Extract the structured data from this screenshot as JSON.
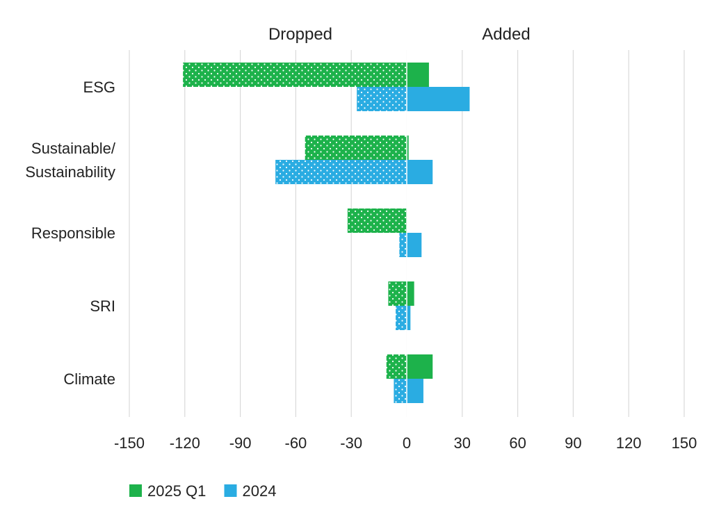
{
  "chart_data": {
    "type": "bar",
    "orientation": "horizontal",
    "direction_labels": {
      "left": "Dropped",
      "right": "Added"
    },
    "categories": [
      "ESG",
      "Sustainable/\nSustainability",
      "Responsible",
      "SRI",
      "Climate"
    ],
    "series": [
      {
        "name": "2025 Q1",
        "color": "#1db24b",
        "dropped": [
          -121,
          -55,
          -32,
          -10,
          -11
        ],
        "added": [
          12,
          1,
          0,
          4,
          14
        ]
      },
      {
        "name": "2024",
        "color": "#2aace2",
        "dropped": [
          -27,
          -71,
          -4,
          -6,
          -7
        ],
        "added": [
          34,
          14,
          8,
          2,
          9
        ]
      }
    ],
    "xlim": [
      -150,
      150
    ],
    "xticks": [
      -150,
      -120,
      -90,
      -60,
      -30,
      0,
      30,
      60,
      90,
      120,
      150
    ],
    "dropped_pattern": "dotted",
    "grid": true,
    "legend": "bottom-left"
  }
}
